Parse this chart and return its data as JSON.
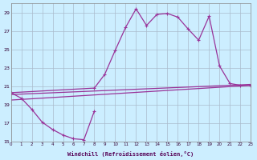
{
  "xlabel": "Windchill (Refroidissement éolien,°C)",
  "background_color": "#cceeff",
  "grid_color": "#aabbcc",
  "line_color": "#993399",
  "xmin": 0,
  "xmax": 23,
  "ymin": 15,
  "ymax": 30,
  "yticks": [
    15,
    17,
    19,
    21,
    23,
    25,
    27,
    29
  ],
  "xticks": [
    0,
    1,
    2,
    3,
    4,
    5,
    6,
    7,
    8,
    9,
    10,
    11,
    12,
    13,
    14,
    15,
    16,
    17,
    18,
    19,
    20,
    21,
    22,
    23
  ],
  "line1_x": [
    0,
    1,
    2,
    3,
    4,
    5,
    6,
    7,
    8
  ],
  "line1_y": [
    20.3,
    19.7,
    18.5,
    17.1,
    16.3,
    15.7,
    15.3,
    15.2,
    18.3
  ],
  "line2_x": [
    0,
    8,
    9,
    10,
    11,
    12,
    13,
    14,
    15,
    16,
    17,
    18,
    19,
    20,
    21,
    22,
    23
  ],
  "line2_y": [
    20.3,
    20.8,
    22.3,
    24.9,
    27.4,
    29.4,
    27.6,
    28.8,
    28.9,
    28.5,
    27.2,
    26.0,
    28.6,
    23.2,
    21.3,
    21.1,
    21.1
  ],
  "trend1_x": [
    0,
    23
  ],
  "trend1_y": [
    20.1,
    21.2
  ],
  "trend2_x": [
    0,
    23
  ],
  "trend2_y": [
    19.5,
    21.1
  ]
}
